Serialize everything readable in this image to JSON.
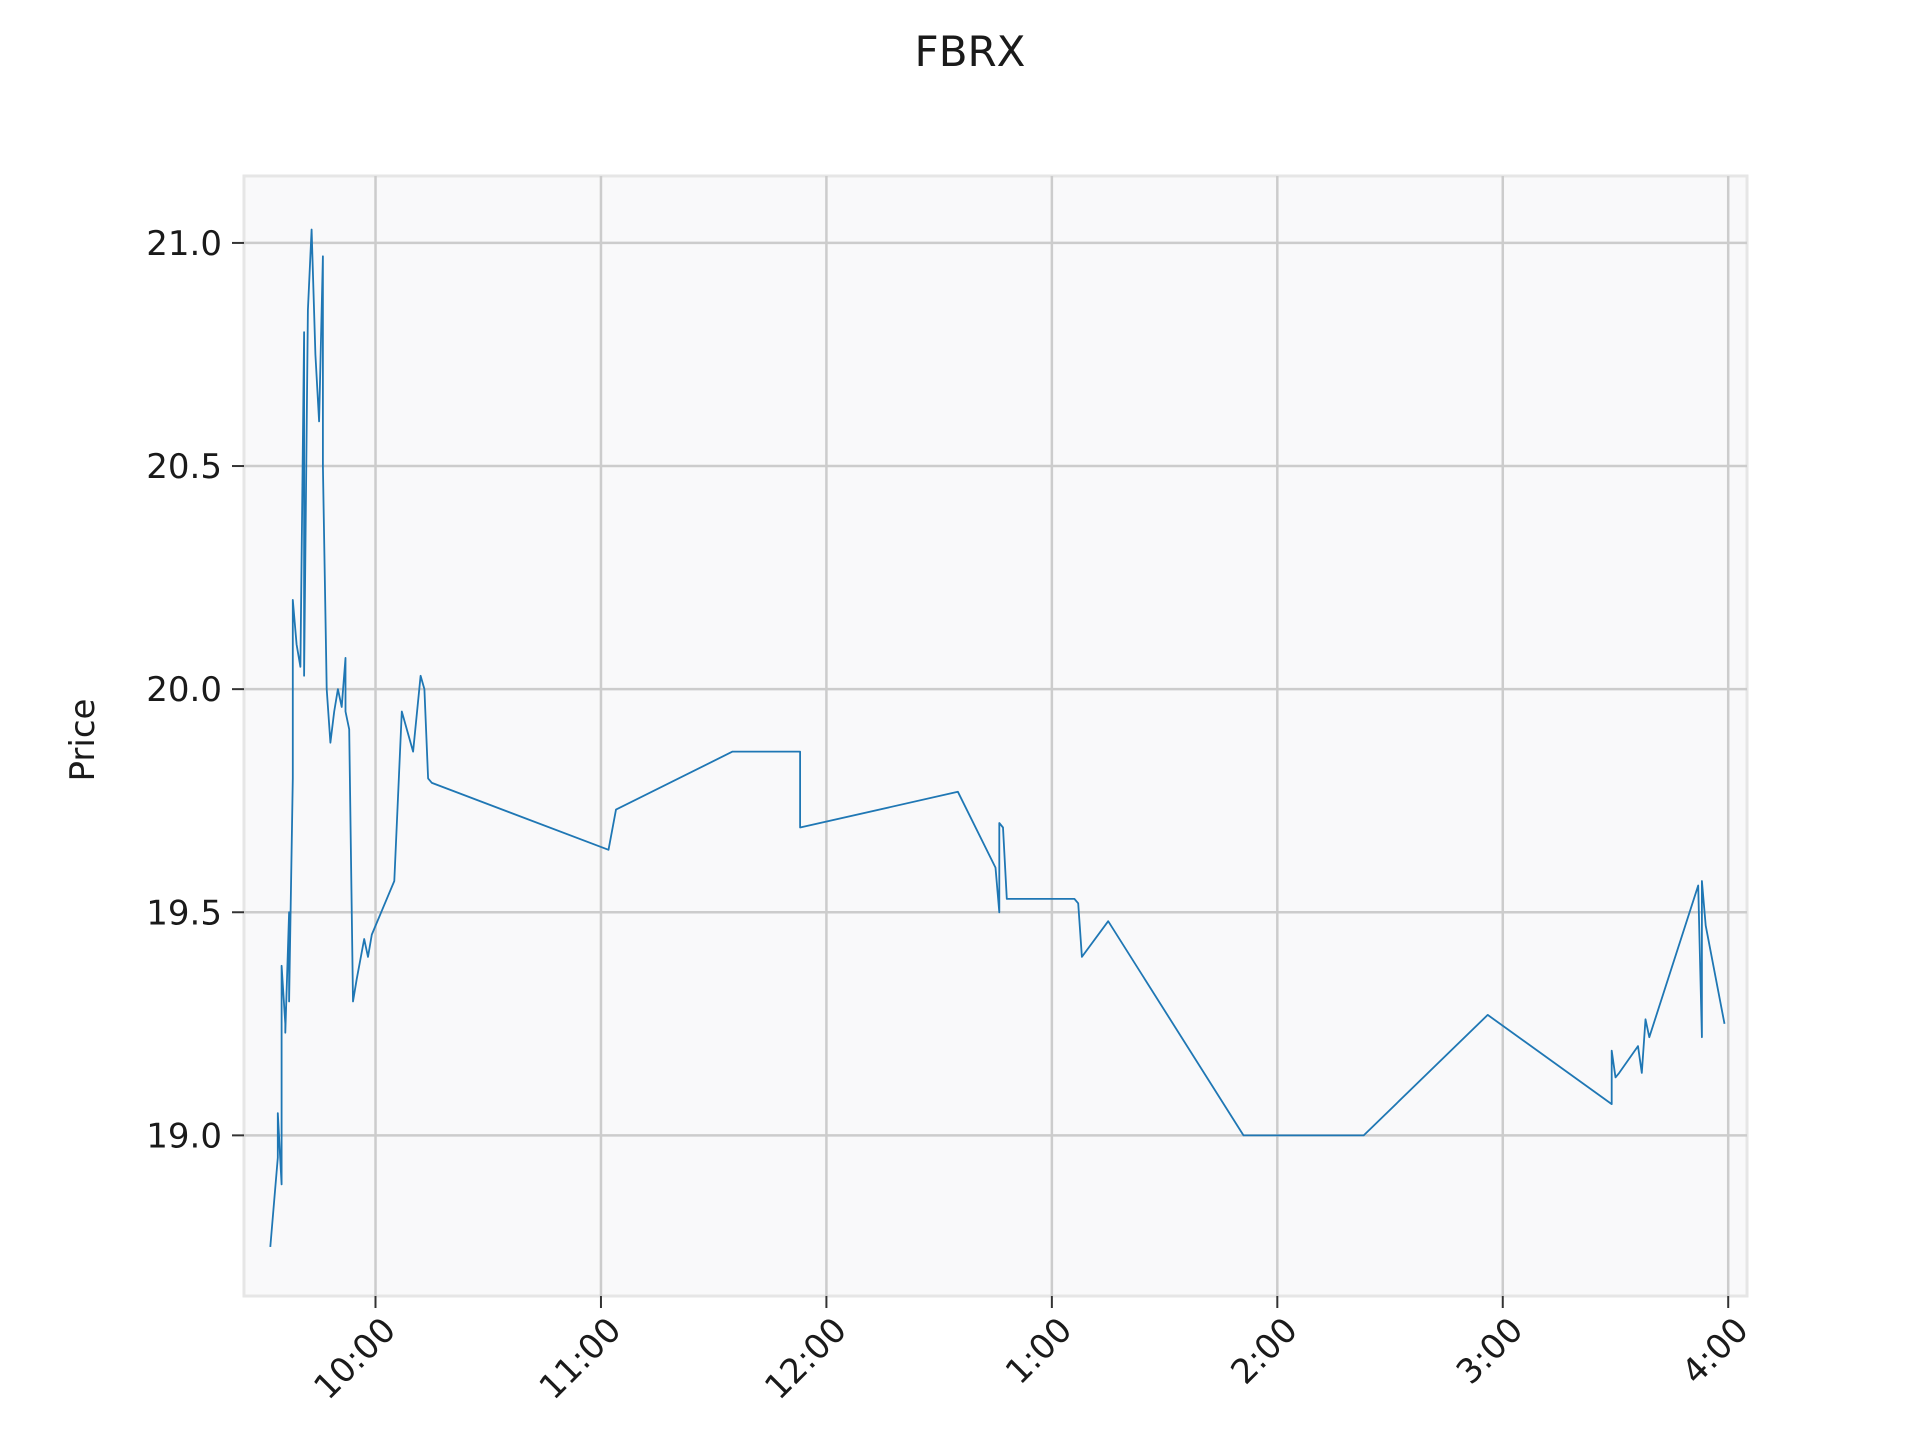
{
  "chart_data": {
    "type": "line",
    "title": "FBRX",
    "xlabel": "",
    "ylabel": "Price",
    "x_ticks": [
      "10:00",
      "11:00",
      "12:00",
      "1:00",
      "2:00",
      "3:00",
      "4:00"
    ],
    "y_ticks": [
      "19.0",
      "19.5",
      "20.0",
      "20.5",
      "21.0"
    ],
    "xlim": [
      "09:25",
      "16:05"
    ],
    "ylim": [
      18.64,
      21.15
    ],
    "grid": true,
    "legend": "none",
    "colors": {
      "line": "#1f77b4",
      "plot_bg": "#f9f9fa",
      "grid": "#cccccc",
      "frame": "#e6e6e6"
    },
    "series": [
      {
        "x": [
          "09:32",
          "09:34",
          "09:34",
          "09:35",
          "09:35",
          "09:36",
          "09:36",
          "09:37",
          "09:37",
          "09:38",
          "09:38",
          "09:39",
          "09:40",
          "09:41",
          "09:41",
          "09:42",
          "09:43",
          "09:44",
          "09:45",
          "09:46",
          "09:46",
          "09:47",
          "09:48",
          "09:49",
          "09:50",
          "09:51",
          "09:52",
          "09:52",
          "09:53",
          "09:54",
          "09:55",
          "09:57",
          "09:58",
          "09:59",
          "10:05",
          "10:07",
          "10:10",
          "10:12",
          "10:13",
          "10:14",
          "10:14",
          "10:15",
          "11:02",
          "11:04",
          "11:35",
          "11:53",
          "11:53",
          "12:35",
          "12:45",
          "12:46",
          "12:46",
          "12:47",
          "12:48",
          "13:06",
          "13:07",
          "13:08",
          "13:15",
          "13:51",
          "14:23",
          "14:56",
          "15:29",
          "15:29",
          "15:30",
          "15:31",
          "15:36",
          "15:37",
          "15:38",
          "15:39",
          "15:52",
          "15:53",
          "15:53",
          "15:54",
          "15:59"
        ],
        "y": [
          18.75,
          18.95,
          19.05,
          18.89,
          19.38,
          19.25,
          19.23,
          19.5,
          19.3,
          19.8,
          20.2,
          20.1,
          20.05,
          20.8,
          20.03,
          20.85,
          21.03,
          20.75,
          20.6,
          20.97,
          20.5,
          20.0,
          19.88,
          19.95,
          20.0,
          19.96,
          20.07,
          19.95,
          19.91,
          19.3,
          19.35,
          19.44,
          19.4,
          19.45,
          19.57,
          19.95,
          19.86,
          20.03,
          20.0,
          19.8,
          19.8,
          19.79,
          19.64,
          19.73,
          19.86,
          19.86,
          19.69,
          19.77,
          19.6,
          19.5,
          19.7,
          19.69,
          19.53,
          19.53,
          19.52,
          19.4,
          19.48,
          19.0,
          19.0,
          19.27,
          19.07,
          19.19,
          19.13,
          19.14,
          19.2,
          19.14,
          19.26,
          19.22,
          19.56,
          19.22,
          19.57,
          19.47,
          19.25
        ]
      }
    ]
  }
}
